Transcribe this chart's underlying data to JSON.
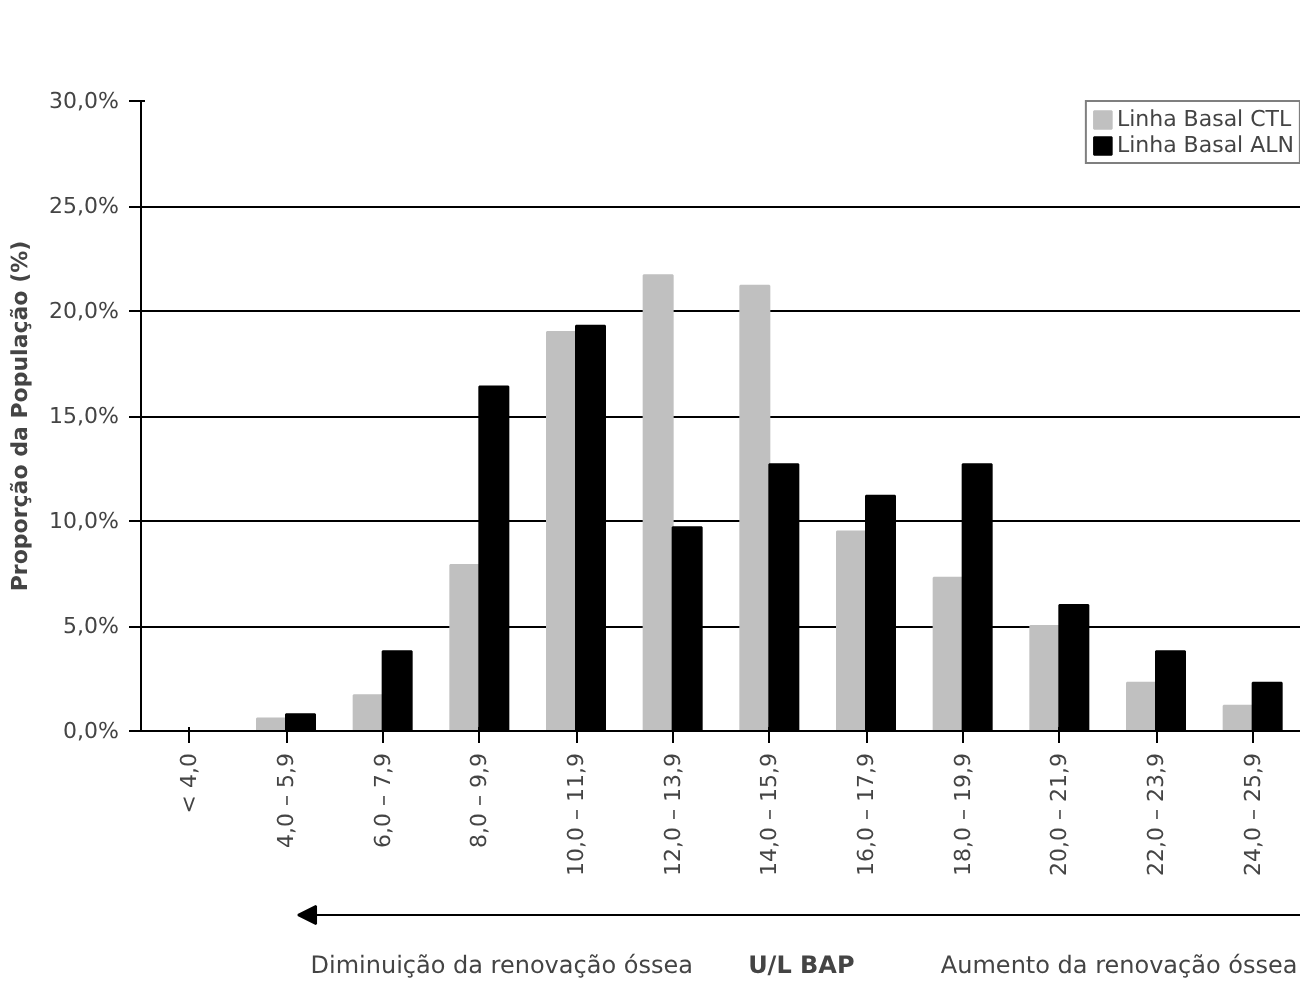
{
  "chart_data": {
    "type": "bar",
    "xlabel": "U/L BAP",
    "ylabel": "Proporção da População (%)",
    "categories": [
      "< 4,0",
      "4,0 – 5,9",
      "6,0 – 7,9",
      "8,0 – 9,9",
      "10,0 – 11,9",
      "12,0 – 13,9",
      "14,0 – 15,9",
      "16,0 – 17,9",
      "18,0 – 19,9",
      "20,0 – 21,9",
      "22,0 – 23,9",
      "24,0 – 25,9"
    ],
    "series": [
      {
        "name": "Linha Basal CTL",
        "color": "#c0c0c0",
        "values": [
          0,
          0.6,
          1.7,
          7.9,
          19.0,
          21.7,
          21.2,
          9.5,
          7.3,
          5.0,
          2.3,
          1.2
        ]
      },
      {
        "name": "Linha Basal ALN",
        "color": "#000000",
        "values": [
          0,
          0.8,
          3.8,
          16.4,
          19.3,
          9.7,
          12.7,
          11.2,
          12.7,
          6.0,
          3.8,
          2.3
        ]
      }
    ],
    "ylim": [
      0,
      30
    ],
    "yticks": [
      {
        "value": 0,
        "label": "0,0%"
      },
      {
        "value": 5,
        "label": "5,0%"
      },
      {
        "value": 10,
        "label": "10,0%"
      },
      {
        "value": 15,
        "label": "15,0%"
      },
      {
        "value": 20,
        "label": "20,0%"
      },
      {
        "value": 25,
        "label": "25,0%"
      },
      {
        "value": 30,
        "label": "30,0%"
      }
    ],
    "grid": "y",
    "legend": "top right",
    "annotations": [
      "Diminuição da renovação óssea",
      "Aumento da renovação óssea"
    ]
  }
}
